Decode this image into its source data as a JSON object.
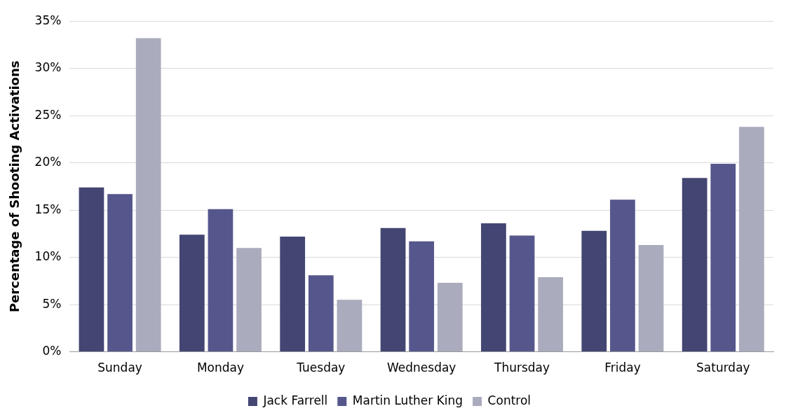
{
  "chart_data": {
    "type": "bar",
    "ylabel": "Percentage of Shooting Activations",
    "categories": [
      "Sunday",
      "Monday",
      "Tuesday",
      "Wednesday",
      "Thursday",
      "Friday",
      "Saturday"
    ],
    "series": [
      {
        "name": "Jack Farrell",
        "color": "#434572",
        "values": [
          17.4,
          12.4,
          12.2,
          13.1,
          13.6,
          12.8,
          18.4
        ]
      },
      {
        "name": "Martin Luther King",
        "color": "#55578c",
        "values": [
          16.7,
          15.1,
          8.1,
          11.7,
          12.3,
          16.1,
          19.9
        ]
      },
      {
        "name": "Control",
        "color": "#aaabbd",
        "values": [
          33.2,
          11.0,
          5.5,
          7.3,
          7.9,
          11.3,
          23.8
        ]
      }
    ],
    "ylim": [
      0,
      35
    ],
    "yticks": [
      {
        "value": 0,
        "label": "0%"
      },
      {
        "value": 5,
        "label": "5%"
      },
      {
        "value": 10,
        "label": "10%"
      },
      {
        "value": 15,
        "label": "15%"
      },
      {
        "value": 20,
        "label": "20%"
      },
      {
        "value": 25,
        "label": "25%"
      },
      {
        "value": 30,
        "label": "30%"
      },
      {
        "value": 35,
        "label": "35%"
      }
    ],
    "grid": "y",
    "legend": "bottom"
  }
}
